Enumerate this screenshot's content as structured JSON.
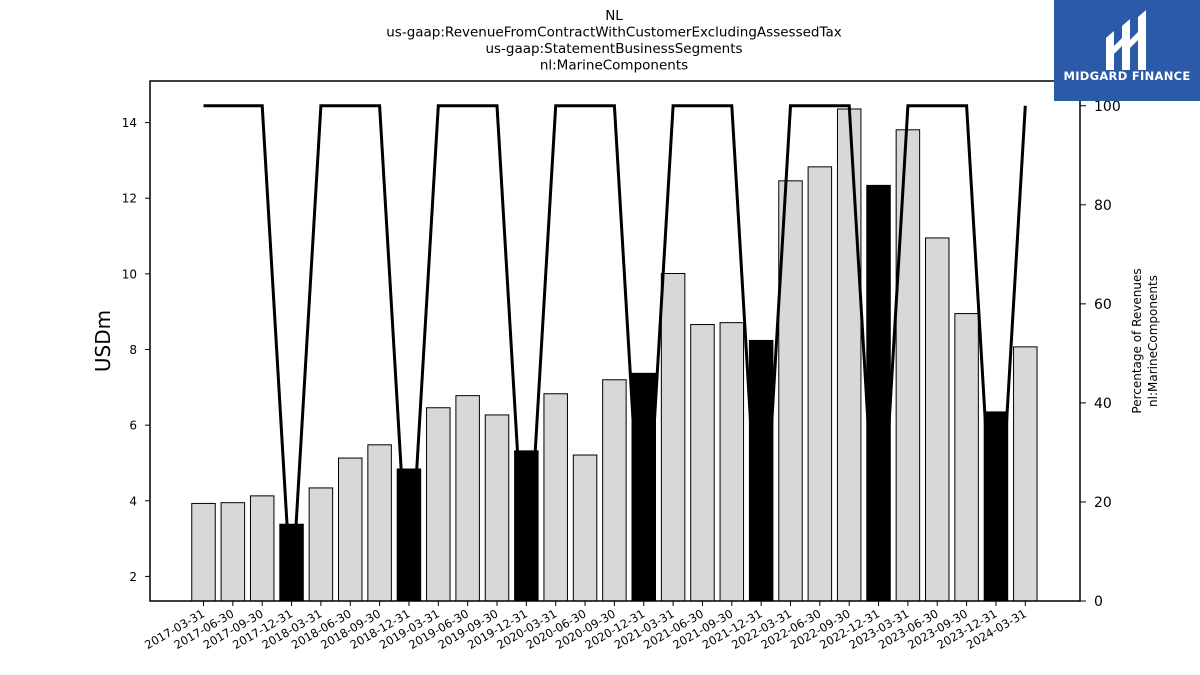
{
  "chart_data": {
    "type": "bar",
    "title_lines": [
      "NL",
      "us-gaap:RevenueFromContractWithCustomerExcludingAssessedTax",
      "us-gaap:StatementBusinessSegments",
      "nl:MarineComponents"
    ],
    "ylabel": "USDm",
    "y2label_lines": [
      "Percentage of Revenues",
      "nl:MarineComponents"
    ],
    "ylim": [
      1.35,
      15.1
    ],
    "y2lim": [
      0,
      105
    ],
    "yticks": [
      2,
      4,
      6,
      8,
      10,
      12,
      14
    ],
    "y2ticks": [
      0,
      20,
      40,
      60,
      80,
      100
    ],
    "categories": [
      "2017-03-31",
      "2017-06-30",
      "2017-09-30",
      "2017-12-31",
      "2018-03-31",
      "2018-06-30",
      "2018-09-30",
      "2018-12-31",
      "2019-03-31",
      "2019-06-30",
      "2019-09-30",
      "2019-12-31",
      "2020-03-31",
      "2020-06-30",
      "2020-09-30",
      "2020-12-31",
      "2021-03-31",
      "2021-06-30",
      "2021-09-30",
      "2021-12-31",
      "2022-03-31",
      "2022-06-30",
      "2022-09-30",
      "2022-12-31",
      "2023-03-31",
      "2023-06-30",
      "2023-09-30",
      "2023-12-31",
      "2024-03-31"
    ],
    "values": [
      3.93,
      3.95,
      4.13,
      3.38,
      4.34,
      5.13,
      5.48,
      4.84,
      6.46,
      6.78,
      6.27,
      5.32,
      6.83,
      5.21,
      7.2,
      7.37,
      10.01,
      8.66,
      8.71,
      8.24,
      12.46,
      12.83,
      14.36,
      12.34,
      13.81,
      10.95,
      8.95,
      6.35,
      8.07
    ],
    "highlight": [
      false,
      false,
      false,
      true,
      false,
      false,
      false,
      true,
      false,
      false,
      false,
      true,
      false,
      false,
      false,
      true,
      false,
      false,
      false,
      true,
      false,
      false,
      false,
      true,
      false,
      false,
      false,
      true,
      false
    ],
    "line_values": [
      100,
      100,
      100,
      0,
      100,
      100,
      100,
      0,
      100,
      100,
      100,
      0,
      100,
      100,
      100,
      0,
      100,
      100,
      100,
      0,
      100,
      100,
      100,
      0,
      100,
      100,
      100,
      0,
      100
    ],
    "colors": {
      "bar": "#d8d8d8",
      "bar_highlight": "#000000",
      "line": "#000000"
    },
    "grid": false
  },
  "logo": {
    "text": "MIDGARD FINANCE"
  }
}
